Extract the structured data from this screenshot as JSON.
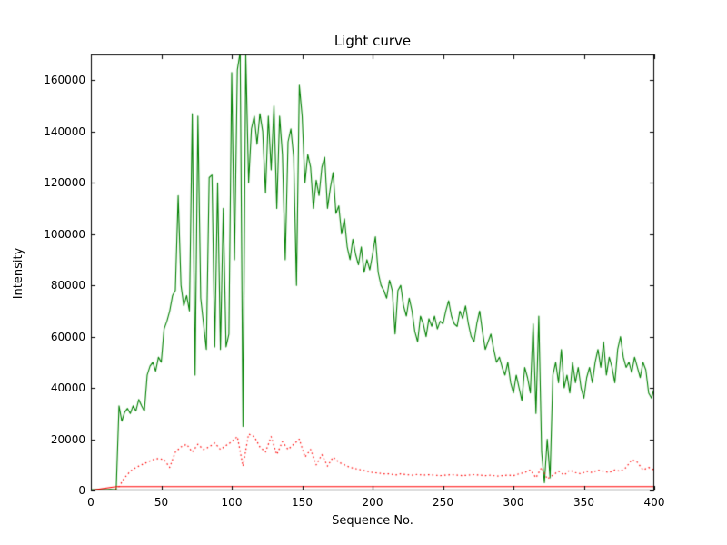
{
  "figure": {
    "background_color": "#ffffff",
    "spine_color": "#000000",
    "text_color": "#000000"
  },
  "chart_data": {
    "type": "line",
    "title": "Light curve",
    "xlabel": "Sequence No.",
    "ylabel": "Intensity",
    "xlim": [
      0,
      400
    ],
    "ylim": [
      0,
      170000
    ],
    "xticks": [
      0,
      50,
      100,
      150,
      200,
      250,
      300,
      350,
      400
    ],
    "yticks": [
      0,
      20000,
      40000,
      60000,
      80000,
      100000,
      120000,
      140000,
      160000
    ],
    "grid": false,
    "legend": null,
    "series": [
      {
        "name": "green-solid-main-lightcurve",
        "color": "#008000",
        "style": "solid",
        "line_width": 1.1,
        "x_start": 0,
        "x_step": 2,
        "y": [
          300,
          300,
          350,
          300,
          320,
          300,
          350,
          400,
          350,
          400,
          33000,
          27000,
          30500,
          32000,
          30000,
          33000,
          31000,
          35500,
          33000,
          31000,
          45000,
          48500,
          50000,
          46500,
          52000,
          50000,
          63000,
          66000,
          70000,
          76000,
          78000,
          115000,
          80000,
          72000,
          76000,
          70000,
          147000,
          45000,
          146000,
          75000,
          65000,
          55000,
          122000,
          123000,
          56000,
          120000,
          55000,
          110000,
          56000,
          61000,
          163000,
          90000,
          164000,
          171000,
          25000,
          170000,
          120000,
          141000,
          146000,
          135000,
          147000,
          140000,
          116000,
          146000,
          125000,
          150000,
          110000,
          146000,
          131000,
          90000,
          136000,
          141000,
          130000,
          80000,
          158000,
          146000,
          120000,
          131000,
          126000,
          110000,
          121000,
          115000,
          126000,
          130000,
          110000,
          118000,
          124000,
          108000,
          111000,
          100000,
          106000,
          95000,
          90000,
          98000,
          92000,
          88000,
          95000,
          85000,
          90000,
          86000,
          92000,
          99000,
          85000,
          80000,
          78000,
          75000,
          82000,
          78000,
          61000,
          78000,
          80000,
          72000,
          68000,
          75000,
          70000,
          62000,
          58000,
          68000,
          65000,
          60000,
          67000,
          64000,
          68000,
          63000,
          66000,
          65000,
          70000,
          74000,
          68000,
          65000,
          64000,
          70000,
          67000,
          72000,
          65000,
          60000,
          58000,
          65000,
          70000,
          62000,
          55000,
          58000,
          61000,
          55000,
          50000,
          52000,
          48000,
          45000,
          50000,
          42000,
          38000,
          45000,
          40000,
          35000,
          48000,
          44000,
          38000,
          65000,
          30000,
          68000,
          15000,
          3000,
          20000,
          5000,
          45000,
          50000,
          42000,
          55000,
          40000,
          45000,
          38000,
          50000,
          42000,
          48000,
          40000,
          36000,
          44000,
          48000,
          42000,
          50000,
          55000,
          48000,
          58000,
          45000,
          52000,
          48000,
          42000,
          55000,
          60000,
          52000,
          48000,
          50000,
          46000,
          52000,
          48000,
          44000,
          50000,
          47000,
          38000,
          36000,
          40000
        ]
      },
      {
        "name": "red-dotted-secondary",
        "color": "#ff0000",
        "style": "dotted",
        "line_width": 1.2,
        "x_start": 0,
        "x_step": 4,
        "y": [
          150,
          150,
          150,
          150,
          150,
          1500,
          5000,
          7500,
          9000,
          10000,
          11000,
          12000,
          12500,
          12000,
          9000,
          15000,
          17000,
          18000,
          15000,
          18000,
          16000,
          17000,
          18500,
          16000,
          17500,
          19000,
          21000,
          9500,
          22000,
          21000,
          17000,
          15000,
          21000,
          14000,
          19000,
          16000,
          18000,
          20000,
          13000,
          16000,
          10000,
          14000,
          9500,
          13000,
          11000,
          10000,
          9000,
          8500,
          8000,
          7500,
          7000,
          6800,
          6500,
          6500,
          6000,
          6500,
          6200,
          6000,
          6300,
          6000,
          6200,
          6000,
          5800,
          6000,
          6200,
          6000,
          5800,
          6000,
          6200,
          6000,
          5800,
          6000,
          5600,
          5800,
          6000,
          5800,
          6500,
          7000,
          8000,
          5000,
          9000,
          4500,
          6000,
          7500,
          6000,
          8000,
          7000,
          6500,
          7500,
          7000,
          8000,
          7500,
          7000,
          8000,
          7500,
          9000,
          12000,
          11000,
          8000,
          9000,
          8000
        ]
      },
      {
        "name": "red-solid-baseline",
        "color": "#ff0000",
        "style": "solid",
        "line_width": 1.1,
        "x": [
          0,
          18,
          400
        ],
        "y": [
          100,
          1500,
          1500
        ]
      }
    ]
  }
}
